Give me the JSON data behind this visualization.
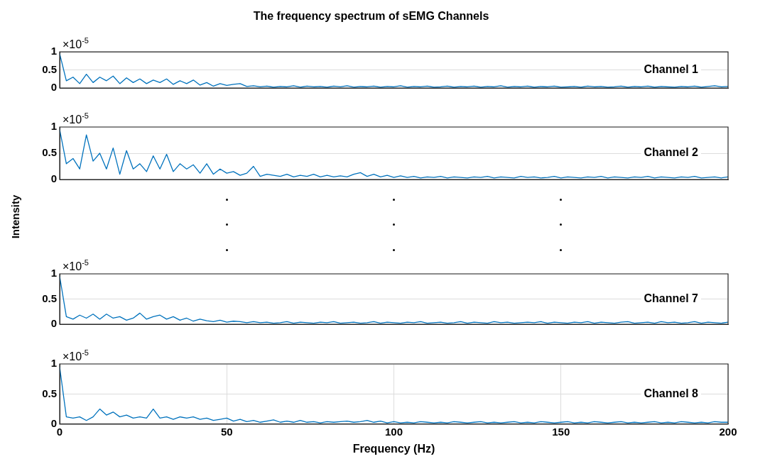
{
  "chart_data": [
    {
      "type": "line",
      "title": "The frequency spectrum of sEMG Channels",
      "annotations": [
        "×10$^{-5}$",
        "Channel 1"
      ],
      "xlim": [
        0,
        200
      ],
      "ylim": [
        0,
        1
      ],
      "xticks": [
        0,
        50,
        100,
        150,
        200
      ],
      "yticks": [
        0,
        0.5,
        1
      ],
      "grid": "y",
      "tick_labels": "y",
      "marker": "none",
      "line_style": "solid",
      "x": [
        0,
        2,
        4,
        6,
        8,
        10,
        12,
        14,
        16,
        18,
        20,
        22,
        24,
        26,
        28,
        30,
        32,
        34,
        36,
        38,
        40,
        42,
        44,
        46,
        48,
        50,
        52,
        54,
        56,
        58,
        60,
        62,
        64,
        66,
        68,
        70,
        72,
        74,
        76,
        78,
        80,
        82,
        84,
        86,
        88,
        90,
        92,
        94,
        96,
        98,
        100,
        102,
        104,
        106,
        108,
        110,
        112,
        114,
        116,
        118,
        120,
        122,
        124,
        126,
        128,
        130,
        132,
        134,
        136,
        138,
        140,
        142,
        144,
        146,
        148,
        150,
        152,
        154,
        156,
        158,
        160,
        162,
        164,
        166,
        168,
        170,
        172,
        174,
        176,
        178,
        180,
        182,
        184,
        186,
        188,
        190,
        192,
        194,
        196,
        198,
        200
      ],
      "series": [
        {
          "color": "#0072bd",
          "values": [
            0.95,
            0.2,
            0.3,
            0.12,
            0.38,
            0.15,
            0.3,
            0.2,
            0.33,
            0.12,
            0.28,
            0.15,
            0.25,
            0.12,
            0.22,
            0.15,
            0.25,
            0.1,
            0.2,
            0.12,
            0.22,
            0.08,
            0.15,
            0.05,
            0.12,
            0.07,
            0.1,
            0.12,
            0.04,
            0.06,
            0.03,
            0.05,
            0.02,
            0.04,
            0.03,
            0.06,
            0.02,
            0.05,
            0.03,
            0.04,
            0.02,
            0.05,
            0.03,
            0.06,
            0.02,
            0.04,
            0.03,
            0.05,
            0.02,
            0.04,
            0.03,
            0.06,
            0.02,
            0.04,
            0.03,
            0.05,
            0.02,
            0.03,
            0.05,
            0.02,
            0.04,
            0.03,
            0.05,
            0.02,
            0.04,
            0.03,
            0.06,
            0.02,
            0.04,
            0.03,
            0.05,
            0.02,
            0.04,
            0.03,
            0.05,
            0.02,
            0.03,
            0.04,
            0.02,
            0.05,
            0.03,
            0.04,
            0.02,
            0.03,
            0.05,
            0.02,
            0.04,
            0.03,
            0.05,
            0.02,
            0.04,
            0.03,
            0.02,
            0.04,
            0.03,
            0.05,
            0.02,
            0.04,
            0.06,
            0.03,
            0.04
          ]
        }
      ]
    },
    {
      "type": "line",
      "ylabel": "Intensity",
      "annotations": [
        "×10$^{-5}$",
        "Channel 2"
      ],
      "xlim": [
        0,
        200
      ],
      "ylim": [
        0,
        1
      ],
      "xticks": [
        0,
        50,
        100,
        150,
        200
      ],
      "yticks": [
        0,
        0.5,
        1
      ],
      "grid": "y",
      "tick_labels": "y",
      "marker": "none",
      "line_style": "solid",
      "x": [
        0,
        2,
        4,
        6,
        8,
        10,
        12,
        14,
        16,
        18,
        20,
        22,
        24,
        26,
        28,
        30,
        32,
        34,
        36,
        38,
        40,
        42,
        44,
        46,
        48,
        50,
        52,
        54,
        56,
        58,
        60,
        62,
        64,
        66,
        68,
        70,
        72,
        74,
        76,
        78,
        80,
        82,
        84,
        86,
        88,
        90,
        92,
        94,
        96,
        98,
        100,
        102,
        104,
        106,
        108,
        110,
        112,
        114,
        116,
        118,
        120,
        122,
        124,
        126,
        128,
        130,
        132,
        134,
        136,
        138,
        140,
        142,
        144,
        146,
        148,
        150,
        152,
        154,
        156,
        158,
        160,
        162,
        164,
        166,
        168,
        170,
        172,
        174,
        176,
        178,
        180,
        182,
        184,
        186,
        188,
        190,
        192,
        194,
        196,
        198,
        200
      ],
      "series": [
        {
          "color": "#0072bd",
          "values": [
            0.95,
            0.3,
            0.4,
            0.2,
            0.85,
            0.35,
            0.5,
            0.2,
            0.6,
            0.1,
            0.55,
            0.2,
            0.3,
            0.15,
            0.45,
            0.2,
            0.48,
            0.15,
            0.3,
            0.2,
            0.28,
            0.12,
            0.3,
            0.1,
            0.2,
            0.12,
            0.15,
            0.08,
            0.12,
            0.25,
            0.06,
            0.1,
            0.08,
            0.06,
            0.1,
            0.05,
            0.08,
            0.06,
            0.1,
            0.05,
            0.08,
            0.05,
            0.07,
            0.05,
            0.1,
            0.13,
            0.06,
            0.1,
            0.05,
            0.08,
            0.04,
            0.07,
            0.04,
            0.06,
            0.03,
            0.05,
            0.04,
            0.06,
            0.03,
            0.05,
            0.04,
            0.03,
            0.05,
            0.04,
            0.06,
            0.03,
            0.05,
            0.04,
            0.03,
            0.06,
            0.04,
            0.05,
            0.03,
            0.04,
            0.06,
            0.03,
            0.05,
            0.04,
            0.03,
            0.05,
            0.04,
            0.06,
            0.03,
            0.05,
            0.04,
            0.03,
            0.05,
            0.04,
            0.06,
            0.03,
            0.05,
            0.04,
            0.03,
            0.05,
            0.04,
            0.06,
            0.03,
            0.04,
            0.05,
            0.03,
            0.05
          ]
        }
      ]
    },
    {
      "type": "line",
      "annotations": [
        "×10$^{-5}$",
        "Channel 7"
      ],
      "xlim": [
        0,
        200
      ],
      "ylim": [
        0,
        1
      ],
      "xticks": [
        0,
        50,
        100,
        150,
        200
      ],
      "yticks": [
        0,
        0.5,
        1
      ],
      "grid": "y",
      "tick_labels": "y",
      "marker": "none",
      "line_style": "solid",
      "x": [
        0,
        2,
        4,
        6,
        8,
        10,
        12,
        14,
        16,
        18,
        20,
        22,
        24,
        26,
        28,
        30,
        32,
        34,
        36,
        38,
        40,
        42,
        44,
        46,
        48,
        50,
        52,
        54,
        56,
        58,
        60,
        62,
        64,
        66,
        68,
        70,
        72,
        74,
        76,
        78,
        80,
        82,
        84,
        86,
        88,
        90,
        92,
        94,
        96,
        98,
        100,
        102,
        104,
        106,
        108,
        110,
        112,
        114,
        116,
        118,
        120,
        122,
        124,
        126,
        128,
        130,
        132,
        134,
        136,
        138,
        140,
        142,
        144,
        146,
        148,
        150,
        152,
        154,
        156,
        158,
        160,
        162,
        164,
        166,
        168,
        170,
        172,
        174,
        176,
        178,
        180,
        182,
        184,
        186,
        188,
        190,
        192,
        194,
        196,
        198,
        200
      ],
      "series": [
        {
          "color": "#0072bd",
          "values": [
            0.95,
            0.15,
            0.1,
            0.18,
            0.12,
            0.2,
            0.1,
            0.2,
            0.12,
            0.15,
            0.08,
            0.12,
            0.22,
            0.1,
            0.15,
            0.18,
            0.1,
            0.15,
            0.08,
            0.12,
            0.06,
            0.1,
            0.07,
            0.05,
            0.08,
            0.04,
            0.06,
            0.05,
            0.03,
            0.05,
            0.03,
            0.04,
            0.02,
            0.03,
            0.05,
            0.02,
            0.04,
            0.03,
            0.02,
            0.04,
            0.03,
            0.05,
            0.02,
            0.03,
            0.04,
            0.02,
            0.03,
            0.05,
            0.02,
            0.04,
            0.03,
            0.02,
            0.04,
            0.03,
            0.05,
            0.02,
            0.03,
            0.04,
            0.02,
            0.03,
            0.05,
            0.02,
            0.04,
            0.03,
            0.02,
            0.05,
            0.03,
            0.04,
            0.02,
            0.03,
            0.04,
            0.03,
            0.05,
            0.02,
            0.04,
            0.03,
            0.02,
            0.04,
            0.03,
            0.05,
            0.02,
            0.04,
            0.03,
            0.02,
            0.04,
            0.05,
            0.02,
            0.03,
            0.04,
            0.02,
            0.05,
            0.03,
            0.04,
            0.02,
            0.03,
            0.05,
            0.02,
            0.04,
            0.03,
            0.02,
            0.04
          ]
        }
      ]
    },
    {
      "type": "line",
      "xlabel": "Frequency (Hz)",
      "annotations": [
        "×10$^{-5}$",
        "Channel 8"
      ],
      "xlim": [
        0,
        200
      ],
      "ylim": [
        0,
        1
      ],
      "xticks": [
        0,
        50,
        100,
        150,
        200
      ],
      "yticks": [
        0,
        0.5,
        1
      ],
      "grid": true,
      "marker": "none",
      "line_style": "solid",
      "x": [
        0,
        2,
        4,
        6,
        8,
        10,
        12,
        14,
        16,
        18,
        20,
        22,
        24,
        26,
        28,
        30,
        32,
        34,
        36,
        38,
        40,
        42,
        44,
        46,
        48,
        50,
        52,
        54,
        56,
        58,
        60,
        62,
        64,
        66,
        68,
        70,
        72,
        74,
        76,
        78,
        80,
        82,
        84,
        86,
        88,
        90,
        92,
        94,
        96,
        98,
        100,
        102,
        104,
        106,
        108,
        110,
        112,
        114,
        116,
        118,
        120,
        122,
        124,
        126,
        128,
        130,
        132,
        134,
        136,
        138,
        140,
        142,
        144,
        146,
        148,
        150,
        152,
        154,
        156,
        158,
        160,
        162,
        164,
        166,
        168,
        170,
        172,
        174,
        176,
        178,
        180,
        182,
        184,
        186,
        188,
        190,
        192,
        194,
        196,
        198,
        200
      ],
      "series": [
        {
          "color": "#0072bd",
          "values": [
            0.95,
            0.12,
            0.1,
            0.12,
            0.06,
            0.12,
            0.25,
            0.15,
            0.2,
            0.12,
            0.15,
            0.1,
            0.12,
            0.1,
            0.25,
            0.1,
            0.12,
            0.08,
            0.12,
            0.1,
            0.12,
            0.08,
            0.1,
            0.06,
            0.08,
            0.1,
            0.05,
            0.08,
            0.04,
            0.06,
            0.03,
            0.05,
            0.07,
            0.03,
            0.05,
            0.03,
            0.06,
            0.03,
            0.04,
            0.02,
            0.04,
            0.03,
            0.04,
            0.05,
            0.03,
            0.04,
            0.06,
            0.03,
            0.05,
            0.02,
            0.04,
            0.02,
            0.03,
            0.02,
            0.04,
            0.03,
            0.02,
            0.03,
            0.02,
            0.04,
            0.03,
            0.02,
            0.03,
            0.04,
            0.02,
            0.03,
            0.02,
            0.03,
            0.04,
            0.02,
            0.03,
            0.02,
            0.04,
            0.03,
            0.02,
            0.03,
            0.04,
            0.02,
            0.03,
            0.02,
            0.04,
            0.03,
            0.02,
            0.03,
            0.04,
            0.02,
            0.03,
            0.02,
            0.03,
            0.04,
            0.02,
            0.03,
            0.02,
            0.04,
            0.03,
            0.02,
            0.03,
            0.02,
            0.04,
            0.03,
            0.03
          ]
        }
      ]
    }
  ]
}
